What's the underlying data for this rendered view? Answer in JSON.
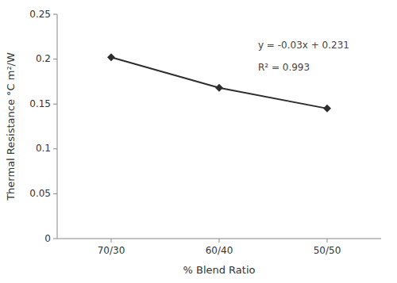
{
  "chart_data": {
    "type": "line",
    "categories": [
      "70/30",
      "60/40",
      "50/50"
    ],
    "values": [
      0.202,
      0.168,
      0.145
    ],
    "color": "#2d2d2d",
    "marker": "diamond",
    "xlabel": "% Blend Ratio",
    "ylabel": "Thermal Resistance °C m²/W",
    "ylim": [
      0,
      0.25
    ],
    "yticks": [
      0,
      0.05,
      0.1,
      0.15,
      0.2,
      0.25
    ],
    "annotations": [
      "y = -0.03x + 0.231",
      "R² = 0.993"
    ],
    "grid": false
  }
}
